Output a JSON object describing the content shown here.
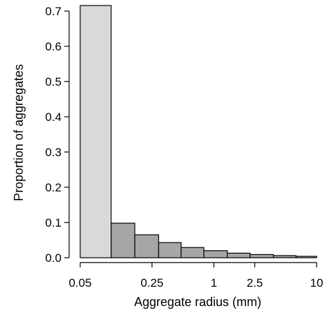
{
  "chart_data": {
    "type": "bar",
    "xlabel": "Aggregate radius (mm)",
    "ylabel": "Proportion of aggregates",
    "x_scale": "log",
    "xlim": [
      0.05,
      10
    ],
    "ylim": [
      0,
      0.72
    ],
    "x_ticks": [
      0.05,
      0.25,
      1,
      2.5,
      10
    ],
    "x_tick_labels": [
      "0.05",
      "0.25",
      "1",
      "2.5",
      "10"
    ],
    "y_ticks": [
      0,
      0.1,
      0.2,
      0.3,
      0.4,
      0.5,
      0.6,
      0.7
    ],
    "y_tick_labels": [
      "0.0",
      "0.1",
      "0.2",
      "0.3",
      "0.4",
      "0.5",
      "0.6",
      "0.7"
    ],
    "grid": false,
    "bins": [
      {
        "x_start": 0.05,
        "x_end": 0.1,
        "value": 0.72,
        "color": "#d9d9d9"
      },
      {
        "x_start": 0.1,
        "x_end": 0.17,
        "value": 0.098,
        "color": "#a6a6a6"
      },
      {
        "x_start": 0.17,
        "x_end": 0.29,
        "value": 0.065,
        "color": "#a6a6a6"
      },
      {
        "x_start": 0.29,
        "x_end": 0.48,
        "value": 0.043,
        "color": "#a6a6a6"
      },
      {
        "x_start": 0.48,
        "x_end": 0.8,
        "value": 0.029,
        "color": "#a6a6a6"
      },
      {
        "x_start": 0.8,
        "x_end": 1.35,
        "value": 0.02,
        "color": "#a6a6a6"
      },
      {
        "x_start": 1.35,
        "x_end": 2.25,
        "value": 0.013,
        "color": "#a6a6a6"
      },
      {
        "x_start": 2.25,
        "x_end": 3.8,
        "value": 0.009,
        "color": "#a6a6a6"
      },
      {
        "x_start": 3.8,
        "x_end": 6.3,
        "value": 0.006,
        "color": "#a6a6a6"
      },
      {
        "x_start": 6.3,
        "x_end": 10,
        "value": 0.004,
        "color": "#a6a6a6"
      }
    ]
  }
}
